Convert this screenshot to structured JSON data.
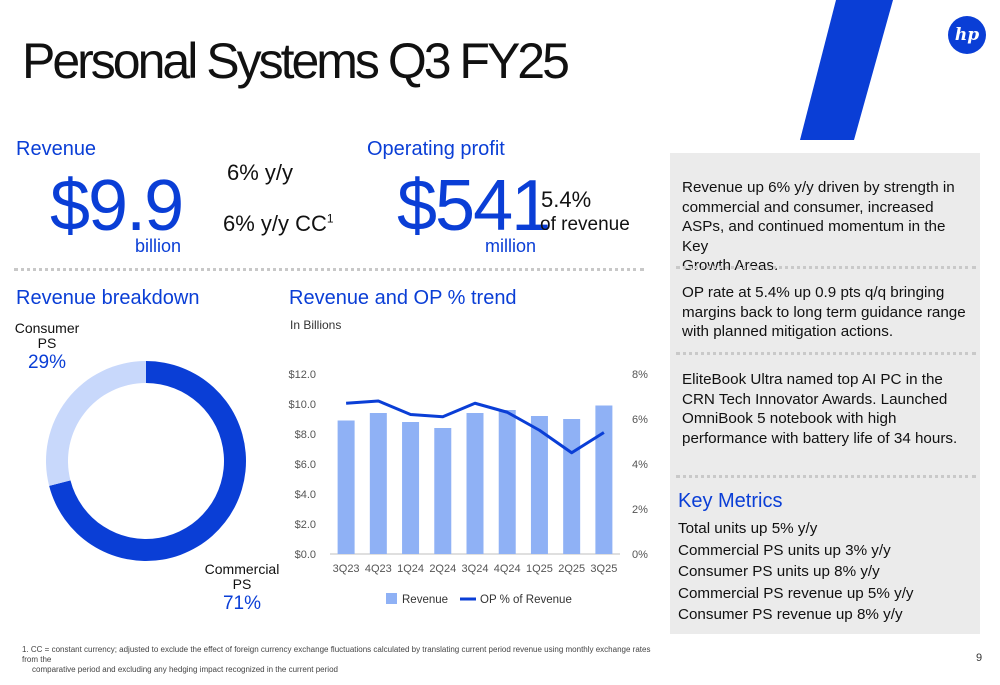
{
  "slide_title": "Personal Systems Q3 FY25",
  "logo_text": "hp",
  "colors": {
    "accent": "#0a3ed6",
    "revenue_bar": "#8fb1f5",
    "consumer_slice": "#c8d8fb",
    "panel_bg": "#ebebeb"
  },
  "revenue": {
    "heading": "Revenue",
    "value": "$9.9",
    "unit": "billion",
    "yy": "6% y/y",
    "yy_cc": "6% y/y CC",
    "yy_cc_sup": "1"
  },
  "operating_profit": {
    "heading": "Operating profit",
    "value": "$541",
    "unit": "million",
    "pct": "5.4%",
    "pct_label": "of revenue"
  },
  "breakdown": {
    "heading": "Revenue breakdown",
    "consumer_label_line1": "Consumer",
    "consumer_label_line2": "PS",
    "consumer_pct": "29%",
    "commercial_label_line1": "Commercial",
    "commercial_label_line2": "PS",
    "commercial_pct": "71%"
  },
  "trend": {
    "heading": "Revenue and OP % trend",
    "subheading": "In Billions"
  },
  "chart_data": [
    {
      "type": "pie",
      "categories": [
        "Consumer PS",
        "Commercial PS"
      ],
      "values": [
        29,
        71
      ]
    },
    {
      "type": "bar",
      "categories": [
        "3Q23",
        "4Q23",
        "1Q24",
        "2Q24",
        "3Q24",
        "4Q24",
        "1Q25",
        "2Q25",
        "3Q25"
      ],
      "series": [
        {
          "name": "Revenue",
          "type": "bar",
          "axis": "left",
          "values": [
            8.9,
            9.4,
            8.8,
            8.4,
            9.4,
            9.6,
            9.2,
            9.0,
            9.9
          ]
        },
        {
          "name": "OP % of Revenue",
          "type": "line",
          "axis": "right",
          "values": [
            6.7,
            6.8,
            6.2,
            6.1,
            6.7,
            6.3,
            5.5,
            4.5,
            5.4
          ]
        }
      ],
      "ylim": [
        0,
        12
      ],
      "y2lim": [
        0,
        8
      ],
      "yticks": [
        "$0.0",
        "$2.0",
        "$4.0",
        "$6.0",
        "$8.0",
        "$10.0",
        "$12.0"
      ],
      "y2ticks": [
        "0%",
        "2%",
        "4%",
        "6%",
        "8%"
      ],
      "legend": "bottom",
      "grid": false
    }
  ],
  "panel": {
    "item1": [
      "Revenue up 6% y/y driven by strength in",
      "commercial and consumer, increased",
      "ASPs, and continued momentum in the Key",
      "Growth Areas."
    ],
    "item2": [
      "OP rate at 5.4% up 0.9 pts q/q bringing",
      "margins back to long term guidance range",
      "with planned mitigation actions."
    ],
    "item3": [
      "EliteBook Ultra named top AI PC in the",
      "CRN Tech Innovator Awards.  Launched",
      "OmniBook 5 notebook with high",
      "performance with battery life of 34 hours."
    ],
    "key_metrics_heading": "Key Metrics",
    "key_metrics": [
      "Total units up 5% y/y",
      "Commercial PS units up 3% y/y",
      "Consumer PS units up 8% y/y",
      "Commercial PS revenue up 5% y/y",
      "Consumer PS revenue up 8% y/y"
    ]
  },
  "footnote_line1": "1.   CC = constant currency; adjusted to exclude the effect of foreign currency exchange fluctuations calculated by translating current period revenue using monthly exchange rates from the",
  "footnote_line2": "comparative period and excluding any hedging impact recognized in the current period",
  "page_number": "9"
}
